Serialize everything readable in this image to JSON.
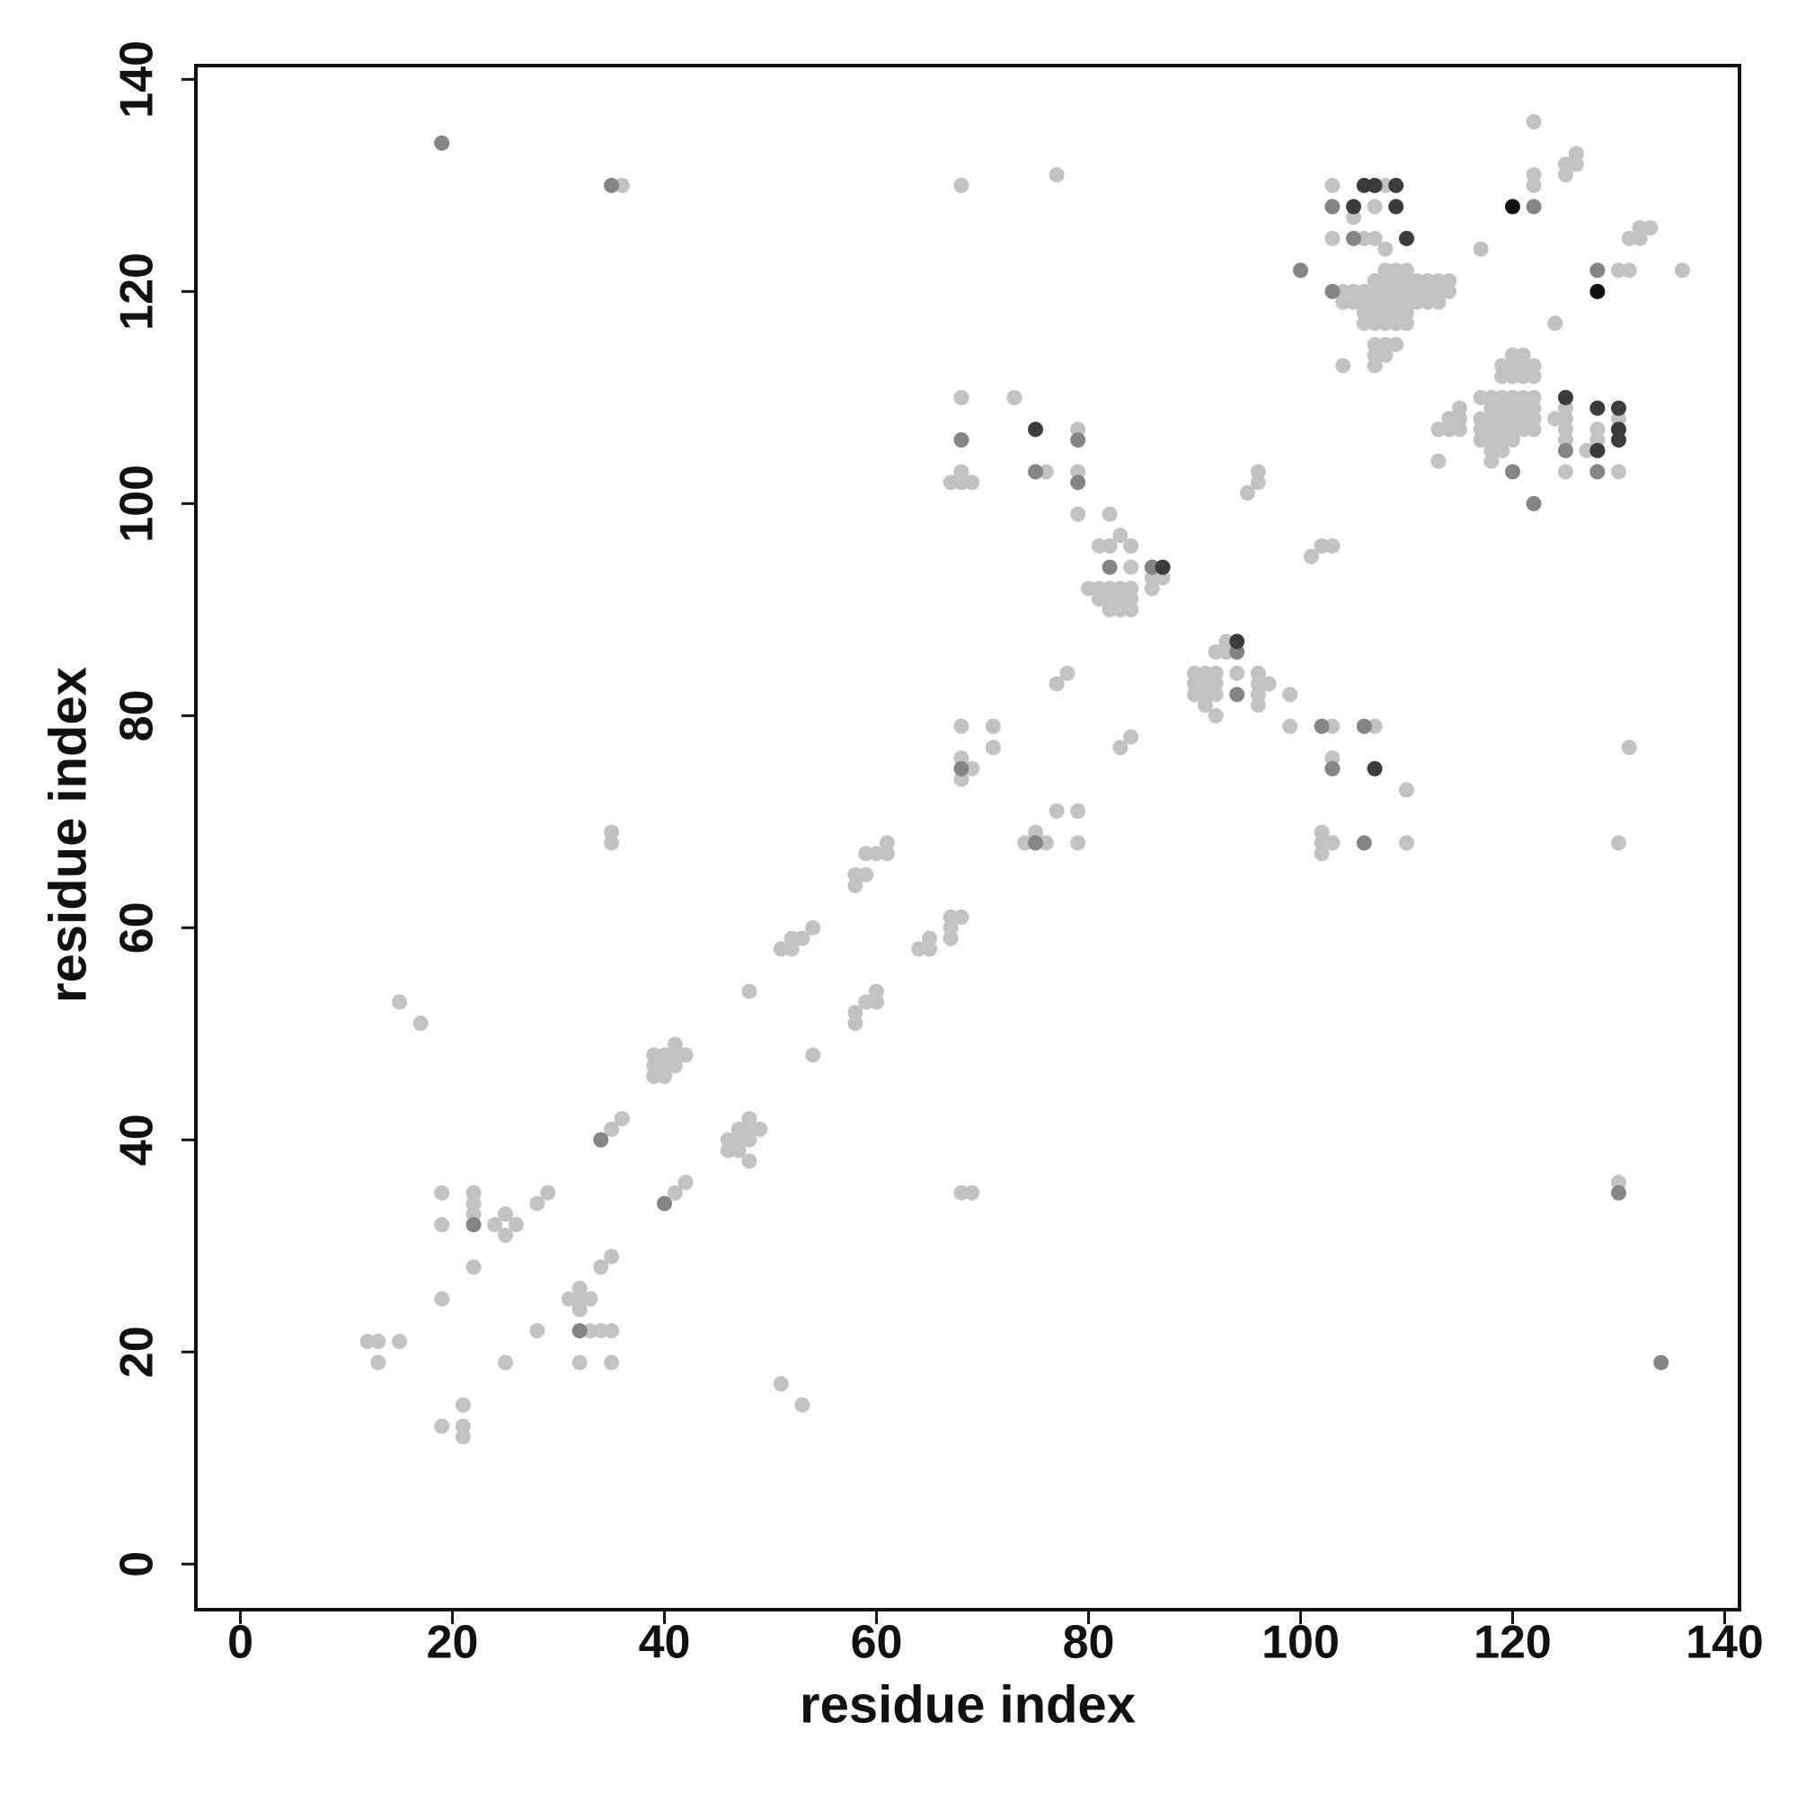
{
  "chart_data": {
    "type": "scatter",
    "xlabel": "residue index",
    "ylabel": "residue index",
    "xlim": [
      -4.2,
      141.4
    ],
    "ylim": [
      -4.3,
      141.3
    ],
    "xticks": [
      0,
      20,
      40,
      60,
      80,
      100,
      120,
      140
    ],
    "yticks": [
      0,
      20,
      40,
      60,
      80,
      100,
      120,
      140
    ],
    "series": [
      {
        "color": "#c2c2c2",
        "x": [
          12,
          13,
          15,
          13,
          19,
          19,
          22,
          22,
          22,
          24,
          25,
          25,
          26,
          28,
          29,
          19,
          22,
          25,
          28,
          19,
          21,
          21,
          21,
          31,
          32,
          32,
          33,
          32,
          33,
          34,
          35,
          32,
          35,
          34,
          35,
          15,
          17,
          35,
          36,
          41,
          42,
          39,
          40,
          41,
          41,
          42,
          40,
          41,
          39,
          40,
          39,
          46,
          46,
          47,
          47,
          48,
          48,
          48,
          49,
          48,
          47,
          48,
          54,
          51,
          53,
          51,
          52,
          52,
          53,
          54,
          58,
          58,
          59,
          60,
          60,
          58,
          58,
          59,
          59,
          60,
          61,
          61,
          64,
          65,
          65,
          67,
          67,
          67,
          68,
          35,
          35,
          68,
          69,
          68,
          68,
          68,
          69,
          71,
          71,
          74,
          75,
          76,
          77,
          79,
          79,
          77,
          78,
          83,
          84,
          67,
          68,
          68,
          69,
          68,
          73,
          76,
          77,
          68,
          36,
          79,
          79,
          79,
          82,
          80,
          81,
          81,
          82,
          82,
          83,
          83,
          83,
          84,
          84,
          84,
          84,
          84,
          82,
          81,
          86,
          86,
          87,
          83,
          82,
          90,
          90,
          90,
          91,
          91,
          91,
          91,
          92,
          92,
          92,
          92,
          92,
          93,
          93,
          94,
          96,
          96,
          96,
          96,
          97,
          99,
          99,
          95,
          96,
          96,
          101,
          102,
          103,
          103,
          102,
          102,
          103,
          102,
          103,
          107,
          110,
          110,
          103,
          103,
          104,
          104,
          105,
          105,
          105,
          106,
          106,
          106,
          106,
          106,
          107,
          107,
          107,
          107,
          107,
          107,
          107,
          107,
          107,
          107,
          108,
          108,
          108,
          108,
          108,
          108,
          108,
          108,
          108,
          108,
          109,
          109,
          109,
          109,
          109,
          109,
          109,
          110,
          110,
          110,
          110,
          110,
          110,
          104,
          112,
          112,
          112,
          113,
          113,
          113,
          114,
          114,
          117,
          113,
          113,
          114,
          114,
          115,
          115,
          115,
          117,
          117,
          117,
          117,
          118,
          118,
          118,
          118,
          118,
          118,
          118,
          119,
          119,
          119,
          119,
          119,
          119,
          119,
          119,
          120,
          120,
          120,
          120,
          120,
          120,
          120,
          120,
          121,
          121,
          121,
          121,
          121,
          121,
          121,
          122,
          122,
          122,
          122,
          122,
          122,
          124,
          124,
          125,
          125,
          125,
          125,
          125,
          127,
          128,
          128,
          130,
          130,
          122,
          122,
          122,
          125,
          125,
          126,
          126,
          130,
          131,
          131,
          132,
          133,
          132,
          136,
          131,
          130,
          130,
          111,
          111,
          111
        ],
        "values": [
          21,
          21,
          21,
          19,
          35,
          32,
          35,
          34,
          33,
          32,
          33,
          31,
          32,
          34,
          35,
          25,
          28,
          19,
          22,
          13,
          13,
          12,
          15,
          25,
          26,
          25,
          25,
          24,
          22,
          22,
          22,
          19,
          19,
          28,
          29,
          53,
          51,
          41,
          42,
          35,
          36,
          48,
          48,
          48,
          49,
          48,
          47,
          47,
          46,
          46,
          47,
          40,
          39,
          41,
          40,
          42,
          41,
          40,
          41,
          38,
          39,
          54,
          48,
          17,
          15,
          58,
          59,
          58,
          59,
          60,
          52,
          51,
          53,
          54,
          53,
          65,
          64,
          65,
          67,
          67,
          68,
          67,
          58,
          58,
          59,
          60,
          59,
          61,
          61,
          69,
          68,
          35,
          35,
          79,
          76,
          74,
          75,
          79,
          77,
          68,
          69,
          68,
          71,
          71,
          68,
          83,
          84,
          77,
          78,
          102,
          102,
          103,
          102,
          110,
          110,
          103,
          131,
          130,
          130,
          107,
          103,
          99,
          99,
          92,
          92,
          96,
          96,
          91,
          91,
          90,
          97,
          96,
          92,
          91,
          90,
          94,
          90,
          91,
          92,
          93,
          93,
          92,
          92,
          84,
          83,
          82,
          84,
          83,
          82,
          81,
          84,
          83,
          82,
          80,
          86,
          86,
          87,
          84,
          84,
          83,
          82,
          81,
          83,
          82,
          79,
          101,
          102,
          103,
          95,
          96,
          96,
          79,
          69,
          68,
          68,
          67,
          76,
          79,
          73,
          68,
          130,
          125,
          120,
          119,
          120,
          119,
          127,
          125,
          120,
          119,
          118,
          117,
          121,
          120,
          119,
          118,
          117,
          115,
          114,
          113,
          128,
          125,
          124,
          122,
          121,
          120,
          119,
          118,
          117,
          115,
          114,
          130,
          122,
          121,
          120,
          119,
          118,
          117,
          115,
          122,
          121,
          120,
          119,
          118,
          117,
          113,
          121,
          120,
          119,
          121,
          120,
          119,
          121,
          120,
          124,
          107,
          104,
          108,
          107,
          109,
          108,
          107,
          110,
          108,
          107,
          106,
          110,
          109,
          108,
          107,
          106,
          105,
          104,
          113,
          112,
          110,
          109,
          108,
          107,
          106,
          105,
          114,
          113,
          112,
          110,
          109,
          108,
          107,
          106,
          114,
          113,
          112,
          110,
          109,
          108,
          107,
          113,
          112,
          110,
          109,
          108,
          107,
          117,
          108,
          109,
          108,
          107,
          106,
          103,
          105,
          107,
          106,
          108,
          103,
          136,
          131,
          130,
          132,
          131,
          133,
          132,
          122,
          122,
          125,
          126,
          126,
          125,
          122,
          77,
          68,
          36,
          119,
          121,
          120
        ]
      },
      {
        "color": "#858585",
        "x": [
          19,
          35,
          22,
          32,
          34,
          40,
          68,
          68,
          75,
          75,
          79,
          79,
          82,
          86,
          94,
          94,
          102,
          103,
          106,
          106,
          100,
          103,
          103,
          105,
          120,
          122,
          122,
          125,
          128,
          128,
          130,
          134
        ],
        "values": [
          134,
          130,
          32,
          22,
          40,
          34,
          106,
          75,
          103,
          68,
          106,
          102,
          94,
          94,
          82,
          86,
          79,
          75,
          79,
          68,
          122,
          128,
          120,
          125,
          103,
          100,
          128,
          105,
          103,
          122,
          35,
          19
        ]
      },
      {
        "color": "#3c3c3c",
        "x": [
          75,
          87,
          94,
          106,
          107,
          109,
          105,
          109,
          110,
          107,
          125,
          128,
          130,
          128,
          130,
          130
        ],
        "values": [
          107,
          94,
          87,
          130,
          130,
          130,
          128,
          128,
          125,
          75,
          110,
          109,
          109,
          105,
          106,
          107
        ]
      },
      {
        "color": "#111111",
        "x": [
          120,
          128
        ],
        "values": [
          128,
          120
        ]
      }
    ]
  }
}
